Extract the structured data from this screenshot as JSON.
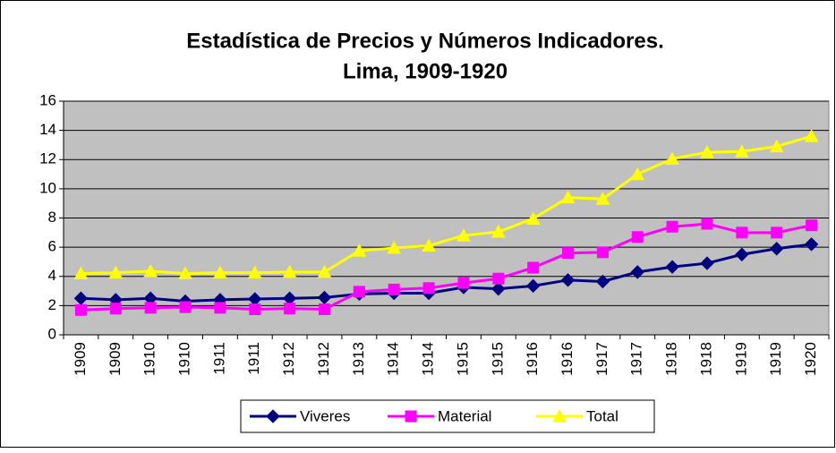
{
  "chart_data": {
    "type": "line",
    "title": [
      "Estadística de Precios y Números Indicadores.",
      "Lima, 1909-1920"
    ],
    "categories": [
      "1909",
      "1909",
      "1910",
      "1910",
      "1911",
      "1911",
      "1912",
      "1912",
      "1913",
      "1914",
      "1914",
      "1915",
      "1915",
      "1916",
      "1916",
      "1917",
      "1917",
      "1918",
      "1918",
      "1919",
      "1919",
      "1920"
    ],
    "series": [
      {
        "name": "Viveres",
        "color": "#000080",
        "marker": "diamond",
        "values": [
          2.5,
          2.4,
          2.5,
          2.3,
          2.4,
          2.45,
          2.5,
          2.55,
          2.8,
          2.85,
          2.85,
          3.25,
          3.15,
          3.35,
          3.75,
          3.65,
          4.3,
          4.65,
          4.9,
          5.5,
          5.9,
          6.2
        ]
      },
      {
        "name": "Material",
        "color": "#ff00ff",
        "marker": "square",
        "values": [
          1.7,
          1.8,
          1.85,
          1.9,
          1.85,
          1.75,
          1.8,
          1.75,
          2.95,
          3.1,
          3.2,
          3.55,
          3.85,
          4.6,
          5.6,
          5.65,
          6.7,
          7.4,
          7.6,
          7.0,
          7.0,
          7.5
        ]
      },
      {
        "name": "Total",
        "color": "#ffff00",
        "marker": "triangle",
        "values": [
          4.2,
          4.25,
          4.35,
          4.2,
          4.25,
          4.25,
          4.3,
          4.3,
          5.75,
          5.95,
          6.1,
          6.8,
          7.05,
          7.95,
          9.4,
          9.3,
          11.0,
          12.05,
          12.5,
          12.55,
          12.9,
          13.6
        ]
      }
    ],
    "ylim": [
      0,
      16
    ],
    "yticks": [
      0,
      2,
      4,
      6,
      8,
      10,
      12,
      14,
      16
    ],
    "grid": true,
    "legend": "bottom",
    "plot_background": "#c0c0c0"
  }
}
